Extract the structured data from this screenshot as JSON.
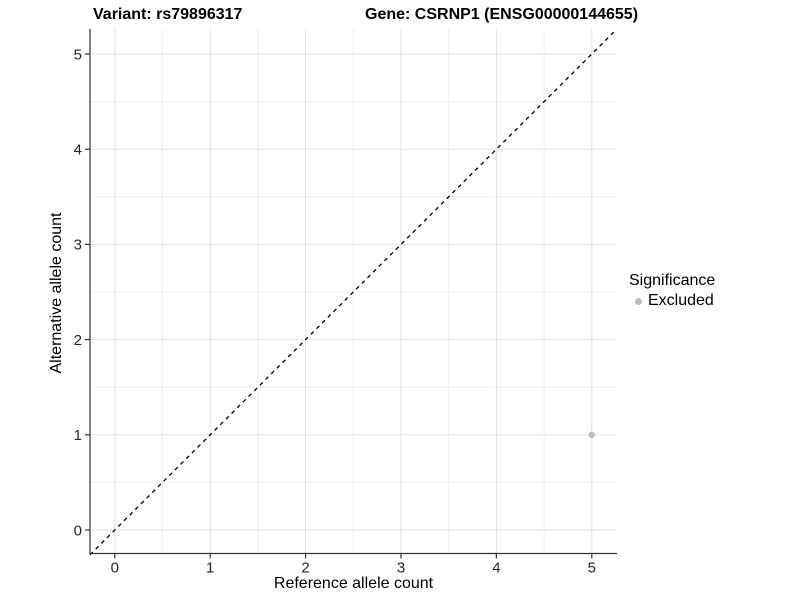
{
  "titles": {
    "variant": "Variant: rs79896317",
    "gene": "Gene: CSRNP1 (ENSG00000144655)"
  },
  "legend": {
    "title": "Significance",
    "items": [
      {
        "label": "Excluded",
        "color": "#bebebe"
      }
    ]
  },
  "chart_data": {
    "type": "scatter",
    "title": "",
    "xlabel": "Reference allele count",
    "ylabel": "Alternative allele count",
    "xticks": [
      0,
      1,
      2,
      3,
      4,
      5
    ],
    "yticks": [
      0,
      1,
      2,
      3,
      4,
      5
    ],
    "xlim": [
      -0.26,
      5.26
    ],
    "ylim": [
      -0.26,
      5.26
    ],
    "grid": "major+minor",
    "legend_position": "right",
    "reference_line": {
      "kind": "identity",
      "style": "dashed",
      "color": "#000000"
    },
    "series": [
      {
        "name": "Excluded",
        "color": "#bebebe",
        "point_radius": 3.2,
        "points": [
          {
            "x": 5,
            "y": 1
          }
        ]
      }
    ]
  },
  "colors": {
    "background": "#ffffff",
    "axis_line": "#333333",
    "tick_text": "#262626",
    "grid_major": "#e2e2e2",
    "grid_minor": "#efefef"
  }
}
